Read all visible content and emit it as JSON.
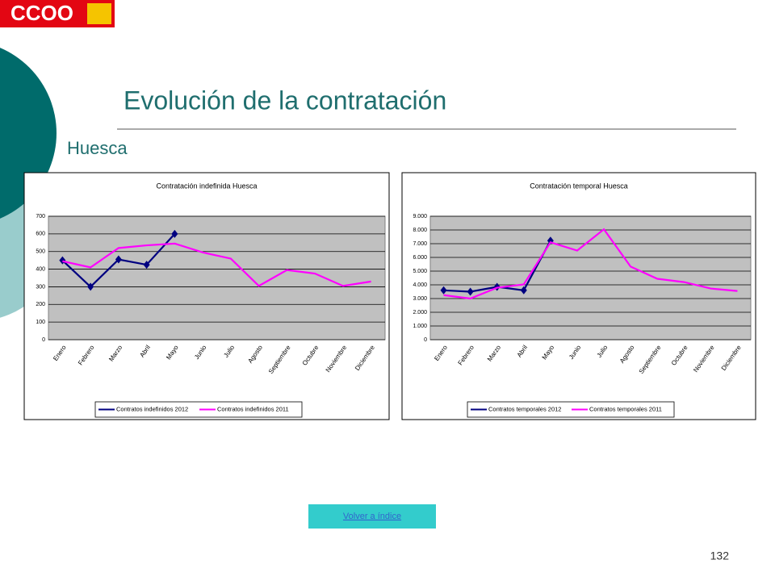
{
  "logo": "CCOO",
  "title": "Evolución de la contratación",
  "subtitle": "Huesca",
  "chart_data": [
    {
      "type": "line",
      "title": "Contratación indefinida Huesca",
      "categories": [
        "Enero",
        "Febrero",
        "Marzo",
        "Abril",
        "Mayo",
        "Junio",
        "Julio",
        "Agosto",
        "Septiembre",
        "Octubre",
        "Noviembre",
        "Diciembre"
      ],
      "series": [
        {
          "name": "Contratos indefinidos 2012",
          "color": "#000080",
          "marker": true,
          "values": [
            450,
            300,
            455,
            425,
            600,
            null,
            null,
            null,
            null,
            null,
            null,
            null
          ]
        },
        {
          "name": "Contratos indefinidos 2011",
          "color": "#ff00ff",
          "marker": false,
          "values": [
            445,
            410,
            520,
            535,
            545,
            495,
            460,
            305,
            395,
            375,
            305,
            330
          ]
        }
      ],
      "ylim": [
        0,
        700
      ],
      "yticks": [
        0,
        100,
        200,
        300,
        400,
        500,
        600,
        700
      ],
      "grid": true,
      "legend": "bottom"
    },
    {
      "type": "line",
      "title": "Contratación temporal Huesca",
      "categories": [
        "Enero",
        "Febrero",
        "Marzo",
        "Abril",
        "Mayo",
        "Junio",
        "Julio",
        "Agosto",
        "Septiembre",
        "Octubre",
        "Noviembre",
        "Diciembre"
      ],
      "series": [
        {
          "name": "Contratos temporales 2012",
          "color": "#000080",
          "marker": true,
          "values": [
            3600,
            3500,
            3850,
            3600,
            7220,
            null,
            null,
            null,
            null,
            null,
            null,
            null
          ]
        },
        {
          "name": "Contratos temporales 2011",
          "color": "#ff00ff",
          "marker": false,
          "values": [
            3250,
            3000,
            3790,
            4030,
            7100,
            6500,
            8050,
            5330,
            4440,
            4200,
            3730,
            3550
          ]
        }
      ],
      "ylim": [
        0,
        9000
      ],
      "yticks": [
        0,
        {
          "value": 1000,
          "label": "1.000"
        },
        {
          "value": 2000,
          "label": "2.000"
        },
        {
          "value": 3000,
          "label": "3.000"
        },
        {
          "value": 4000,
          "label": "4.000"
        },
        {
          "value": 5000,
          "label": "5.000"
        },
        {
          "value": 6000,
          "label": "6.000"
        },
        {
          "value": 7000,
          "label": "7.000"
        },
        {
          "value": 8000,
          "label": "8.000"
        },
        {
          "value": 9000,
          "label": "9.000"
        }
      ],
      "grid": true,
      "legend": "bottom"
    }
  ],
  "link": "Volver a índice",
  "page_number": 132
}
